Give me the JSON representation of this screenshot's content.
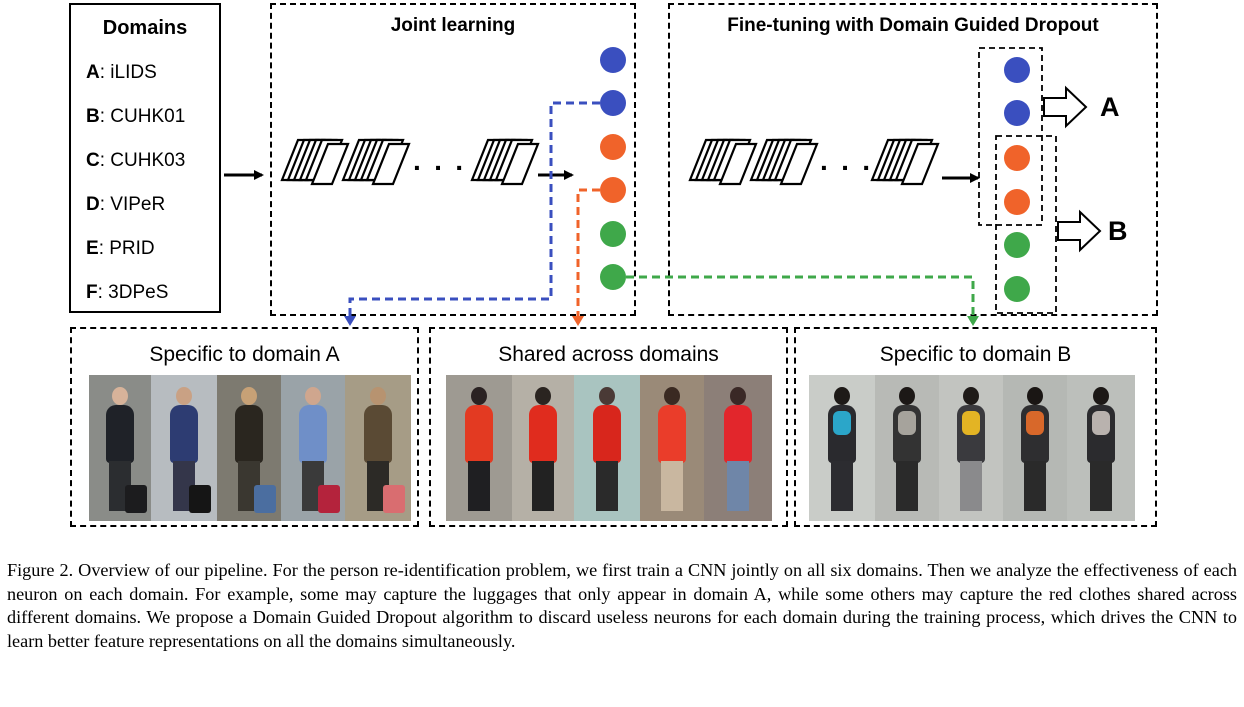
{
  "domains": {
    "title": "Domains",
    "items": [
      {
        "key": "A",
        "name": ": iLIDS"
      },
      {
        "key": "B",
        "name": ": CUHK01"
      },
      {
        "key": "C",
        "name": ": CUHK03"
      },
      {
        "key": "D",
        "name": ": VIPeR"
      },
      {
        "key": "E",
        "name": ": PRID"
      },
      {
        "key": "F",
        "name": ": 3DPeS"
      }
    ]
  },
  "joint": {
    "title": "Joint learning",
    "ellipsis": "· · ·"
  },
  "finetune": {
    "title": "Fine-tuning with Domain Guided Dropout",
    "ellipsis": "· · ·",
    "out_a": "A",
    "out_b": "B"
  },
  "panels": {
    "a": {
      "title": "Specific to domain A"
    },
    "shared": {
      "title": "Shared across domains"
    },
    "b": {
      "title": "Specific to domain B"
    }
  },
  "colors": {
    "blue": "#3a4fbf",
    "orange": "#f0632a",
    "green": "#3fa84a"
  },
  "caption": "Figure 2. Overview of our pipeline. For the person re-identification problem, we first train a CNN jointly on all six domains. Then we analyze the effectiveness of each neuron on each domain. For example, some may capture the luggages that only appear in domain A, while some others may capture the red clothes shared across different domains. We propose a Domain Guided Dropout algorithm to discard useless neurons for each domain during the training process, which drives the CNN to learn better feature representations on all the domains simultaneously."
}
